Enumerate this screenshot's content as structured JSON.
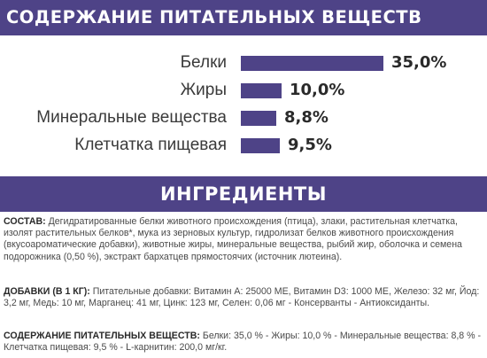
{
  "nutrients_section": {
    "title": "СОДЕРЖАНИЕ ПИТАТЕЛЬНЫХ ВЕЩЕСТВ",
    "bar_color": "#4e4387",
    "items": [
      {
        "label": "Белки",
        "value": "35,0%",
        "amount": 35.0
      },
      {
        "label": "Жиры",
        "value": "10,0%",
        "amount": 10.0
      },
      {
        "label": "Минеральные вещества",
        "value": "8,8%",
        "amount": 8.8
      },
      {
        "label": "Клетчатка пищевая",
        "value": "9,5%",
        "amount": 9.5
      }
    ]
  },
  "ingredients_section": {
    "title": "ИНГРЕДИЕНТЫ",
    "composition": {
      "label": "СОСТАВ:",
      "text": " Дегидратированные белки животного происхождения (птица), злаки, растительная клетчатка, изолят растительных белков*, мука из зерновых культур, гидролизат белков животного происхождения (вкусоароматические добавки), животные жиры, минеральные вещества, рыбий жир, оболочка и семена подорожника (0,50 %), экстракт бархатцев прямостоячих (источник лютеина)."
    },
    "additives": {
      "label": "ДОБАВКИ (В 1 КГ):",
      "text": " Питательные добавки: Витамин A: 25000 МЕ, Витамин D3: 1000 МЕ, Железо: 32 мг, Йод: 3,2 мг, Медь: 10 мг, Марганец: 41 мг, Цинк: 123 мг, Селен: 0,06 мг - Консерванты - Антиоксиданты."
    },
    "nutrients_summary": {
      "label": "СОДЕРЖАНИЕ ПИТАТЕЛЬНЫХ ВЕЩЕСТВ:",
      "text": " Белки: 35,0 % - Жиры: 10,0 % - Минеральные вещества: 8,8 % - Клетчатка пищевая: 9,5 % - L-карнитин: 200,0 мг/кг."
    }
  }
}
